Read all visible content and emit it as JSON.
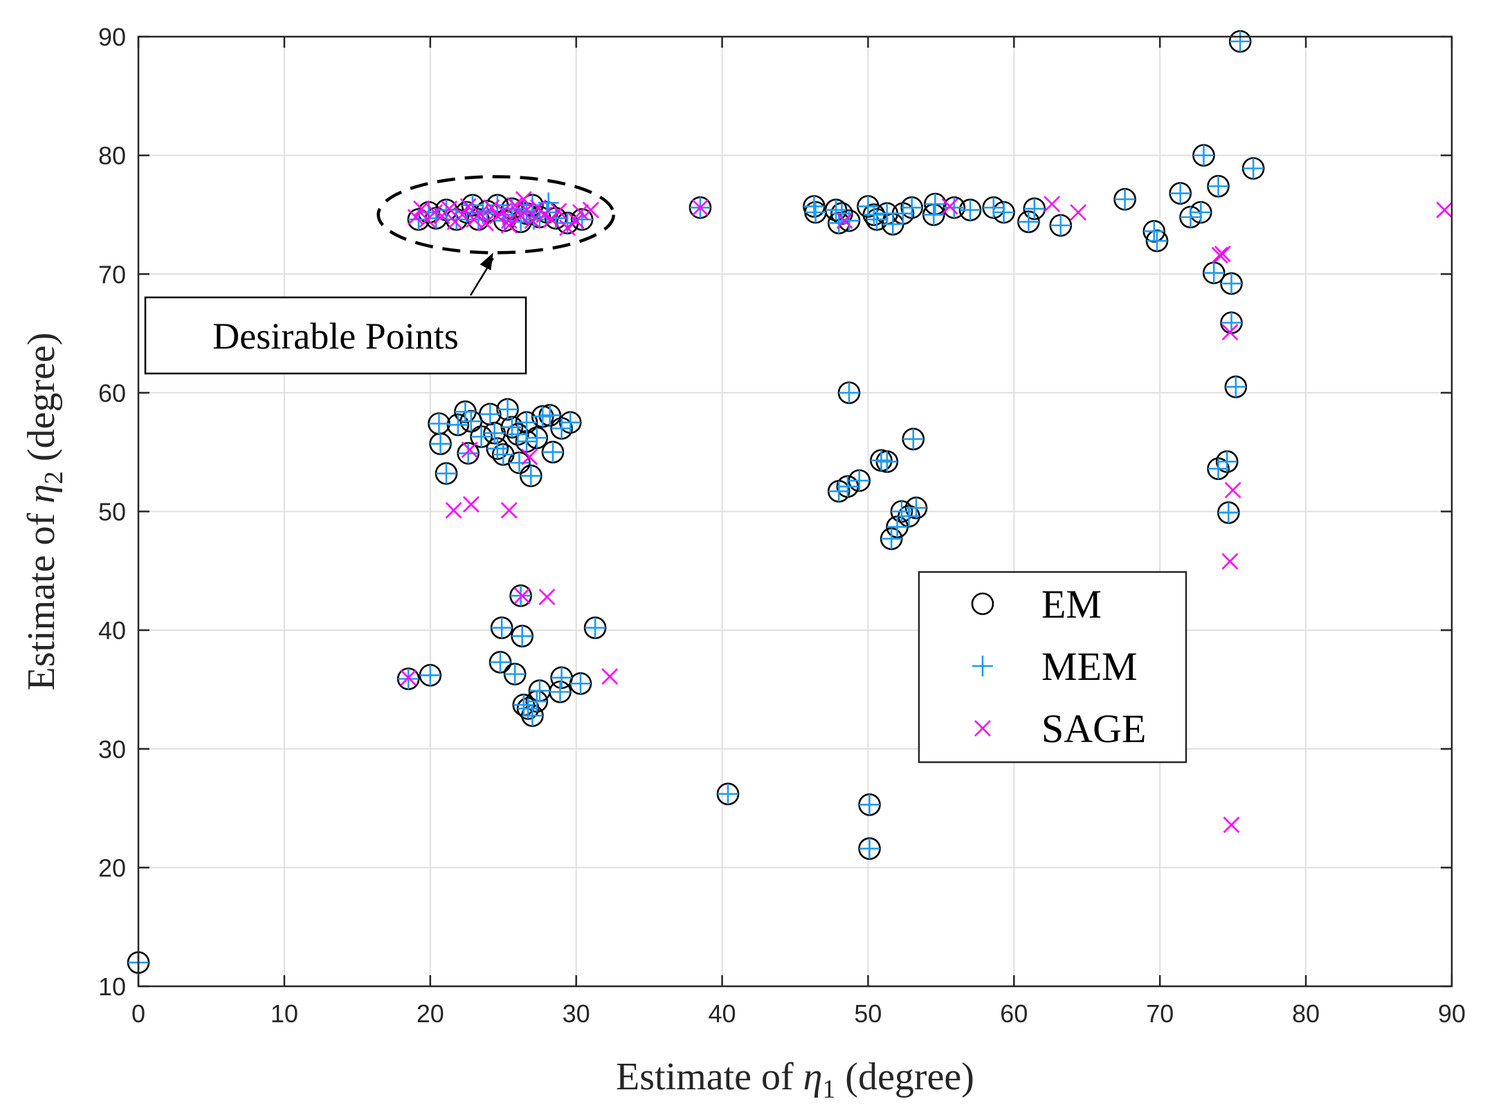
{
  "chart_data": {
    "type": "scatter",
    "title": "",
    "xlabel": "Estimate of η1 (degree)",
    "ylabel": "Estimate of η2 (degree)",
    "xlabel_parts": {
      "pre": "Estimate of ",
      "sym": "η",
      "sub": "1",
      "post": " (degree)"
    },
    "ylabel_parts": {
      "pre": "Estimate of ",
      "sym": "η",
      "sub": "2",
      "post": " (degree)"
    },
    "xlim": [
      0,
      90
    ],
    "ylim": [
      10,
      90
    ],
    "xticks": [
      0,
      10,
      20,
      30,
      40,
      50,
      60,
      70,
      80,
      90
    ],
    "yticks": [
      10,
      20,
      30,
      40,
      50,
      60,
      70,
      80,
      90
    ],
    "grid": true,
    "legend_position": "center-right",
    "annotation": {
      "text": "Desirable Points",
      "target": [
        24.5,
        75
      ]
    },
    "series": [
      {
        "name": "EM",
        "marker": "circle",
        "color": "#000000",
        "points": [
          [
            0,
            12
          ],
          [
            20,
            36.2
          ],
          [
            18.5,
            35.9
          ],
          [
            25.8,
            36.3
          ],
          [
            24.8,
            37.3
          ],
          [
            24.9,
            40.2
          ],
          [
            26.3,
            39.5
          ],
          [
            26.2,
            42.9
          ],
          [
            26.4,
            33.7
          ],
          [
            26.7,
            33.4
          ],
          [
            27,
            32.8
          ],
          [
            27.3,
            34
          ],
          [
            27.5,
            34.9
          ],
          [
            28.9,
            34.8
          ],
          [
            29.0,
            36.0
          ],
          [
            30.3,
            35.5
          ],
          [
            31.3,
            40.2
          ],
          [
            40.4,
            26.2
          ],
          [
            50.1,
            25.3
          ],
          [
            50.1,
            21.6
          ],
          [
            20.6,
            57.4
          ],
          [
            20.7,
            55.7
          ],
          [
            21.1,
            53.2
          ],
          [
            21.9,
            57.3
          ],
          [
            22.4,
            58.4
          ],
          [
            22.8,
            57.6
          ],
          [
            22.6,
            54.9
          ],
          [
            23.5,
            56.3
          ],
          [
            24.1,
            58.2
          ],
          [
            24.4,
            56.6
          ],
          [
            24.6,
            55.3
          ],
          [
            25.0,
            54.8
          ],
          [
            25.3,
            58.6
          ],
          [
            25.6,
            57.1
          ],
          [
            26.0,
            56.5
          ],
          [
            26.6,
            55.9
          ],
          [
            26.1,
            54.1
          ],
          [
            26.6,
            57.5
          ],
          [
            26.9,
            53.0
          ],
          [
            27.3,
            56.2
          ],
          [
            27.7,
            58.0
          ],
          [
            28.2,
            58.1
          ],
          [
            28.4,
            55.0
          ],
          [
            29.0,
            57.0
          ],
          [
            29.6,
            57.5
          ],
          [
            48.7,
            60.0
          ],
          [
            48.0,
            51.7
          ],
          [
            48.6,
            52.1
          ],
          [
            49.4,
            52.6
          ],
          [
            50.9,
            54.3
          ],
          [
            51.3,
            54.2
          ],
          [
            53.1,
            56.1
          ],
          [
            51.6,
            47.7
          ],
          [
            52.0,
            48.7
          ],
          [
            52.3,
            50.0
          ],
          [
            52.8,
            49.6
          ],
          [
            53.3,
            50.3
          ],
          [
            19.2,
            74.6
          ],
          [
            19.9,
            75.2
          ],
          [
            20.4,
            74.7
          ],
          [
            21.1,
            75.4
          ],
          [
            21.8,
            74.6
          ],
          [
            22.5,
            75.2
          ],
          [
            22.9,
            75.8
          ],
          [
            23.3,
            74.6
          ],
          [
            23.9,
            75.3
          ],
          [
            24.6,
            75.8
          ],
          [
            25.1,
            74.5
          ],
          [
            25.6,
            75.5
          ],
          [
            26.2,
            74.4
          ],
          [
            26.6,
            75.1
          ],
          [
            27.0,
            75.8
          ],
          [
            27.5,
            74.8
          ],
          [
            28.0,
            75.2
          ],
          [
            28.6,
            74.7
          ],
          [
            29.4,
            74.3
          ],
          [
            30.4,
            74.6
          ],
          [
            38.5,
            75.6
          ],
          [
            46.4,
            75.2
          ],
          [
            46.3,
            75.7
          ],
          [
            47.8,
            75.4
          ],
          [
            48.0,
            74.3
          ],
          [
            48.7,
            74.5
          ],
          [
            48.2,
            75.1
          ],
          [
            50.0,
            75.7
          ],
          [
            50.4,
            75.0
          ],
          [
            50.6,
            74.6
          ],
          [
            51.3,
            75.1
          ],
          [
            51.7,
            74.2
          ],
          [
            52.4,
            75.1
          ],
          [
            53.0,
            75.6
          ],
          [
            54.6,
            75.9
          ],
          [
            54.5,
            75.0
          ],
          [
            55.9,
            75.6
          ],
          [
            57.0,
            75.4
          ],
          [
            58.6,
            75.6
          ],
          [
            59.3,
            75.2
          ],
          [
            61.0,
            74.4
          ],
          [
            61.4,
            75.5
          ],
          [
            63.2,
            74.1
          ],
          [
            67.6,
            76.3
          ],
          [
            69.6,
            73.6
          ],
          [
            69.8,
            72.8
          ],
          [
            71.4,
            76.8
          ],
          [
            72.1,
            74.8
          ],
          [
            72.8,
            75.2
          ],
          [
            73.0,
            80.0
          ],
          [
            74.0,
            77.4
          ],
          [
            75.5,
            89.6
          ],
          [
            76.4,
            78.9
          ],
          [
            73.7,
            70.1
          ],
          [
            74.9,
            69.2
          ],
          [
            74.9,
            65.9
          ],
          [
            75.2,
            60.5
          ],
          [
            74.6,
            54.2
          ],
          [
            74.0,
            53.6
          ],
          [
            74.7,
            49.9
          ]
        ]
      },
      {
        "name": "MEM",
        "marker": "plus",
        "color": "#1e9bef",
        "points": [
          [
            0,
            12
          ],
          [
            20,
            36.2
          ],
          [
            18.5,
            35.9
          ],
          [
            25.8,
            36.3
          ],
          [
            24.8,
            37.3
          ],
          [
            24.9,
            40.2
          ],
          [
            26.3,
            39.5
          ],
          [
            26.2,
            42.9
          ],
          [
            26.4,
            33.7
          ],
          [
            26.7,
            33.4
          ],
          [
            27,
            32.8
          ],
          [
            27.3,
            34
          ],
          [
            27.5,
            34.9
          ],
          [
            28.9,
            34.8
          ],
          [
            29.0,
            36.0
          ],
          [
            30.3,
            35.5
          ],
          [
            31.3,
            40.2
          ],
          [
            40.4,
            26.2
          ],
          [
            50.1,
            25.3
          ],
          [
            50.1,
            21.6
          ],
          [
            20.6,
            57.4
          ],
          [
            20.7,
            55.7
          ],
          [
            21.1,
            53.2
          ],
          [
            21.9,
            57.3
          ],
          [
            22.4,
            58.4
          ],
          [
            22.8,
            57.6
          ],
          [
            22.6,
            54.9
          ],
          [
            23.5,
            56.3
          ],
          [
            24.1,
            58.2
          ],
          [
            24.4,
            56.6
          ],
          [
            24.6,
            55.3
          ],
          [
            25.0,
            54.8
          ],
          [
            25.3,
            58.6
          ],
          [
            25.6,
            57.1
          ],
          [
            26.0,
            56.5
          ],
          [
            26.6,
            55.9
          ],
          [
            26.1,
            54.1
          ],
          [
            26.6,
            57.5
          ],
          [
            26.9,
            53.0
          ],
          [
            27.3,
            56.2
          ],
          [
            27.7,
            58.0
          ],
          [
            28.2,
            58.1
          ],
          [
            28.4,
            55.0
          ],
          [
            29.0,
            57.0
          ],
          [
            29.6,
            57.5
          ],
          [
            48.7,
            60.0
          ],
          [
            48.0,
            51.7
          ],
          [
            48.6,
            52.1
          ],
          [
            49.4,
            52.6
          ],
          [
            50.9,
            54.3
          ],
          [
            51.3,
            54.2
          ],
          [
            53.1,
            56.1
          ],
          [
            51.6,
            47.7
          ],
          [
            52.0,
            48.7
          ],
          [
            52.3,
            50.0
          ],
          [
            52.8,
            49.6
          ],
          [
            53.3,
            50.3
          ],
          [
            19.2,
            74.6
          ],
          [
            19.9,
            75.2
          ],
          [
            20.4,
            74.7
          ],
          [
            21.1,
            75.4
          ],
          [
            21.8,
            74.6
          ],
          [
            22.5,
            75.2
          ],
          [
            22.9,
            75.8
          ],
          [
            23.3,
            74.6
          ],
          [
            23.9,
            75.3
          ],
          [
            24.6,
            75.8
          ],
          [
            25.1,
            74.5
          ],
          [
            25.6,
            75.5
          ],
          [
            26.2,
            74.4
          ],
          [
            26.6,
            75.1
          ],
          [
            27.0,
            75.8
          ],
          [
            27.5,
            74.8
          ],
          [
            28.0,
            75.2
          ],
          [
            28.6,
            74.7
          ],
          [
            29.4,
            74.3
          ],
          [
            30.4,
            74.6
          ],
          [
            38.5,
            75.6
          ],
          [
            46.4,
            75.2
          ],
          [
            46.3,
            75.7
          ],
          [
            47.8,
            75.4
          ],
          [
            48.0,
            74.3
          ],
          [
            48.7,
            74.5
          ],
          [
            48.2,
            75.1
          ],
          [
            50.0,
            75.7
          ],
          [
            50.4,
            75.0
          ],
          [
            50.6,
            74.6
          ],
          [
            51.3,
            75.1
          ],
          [
            51.7,
            74.2
          ],
          [
            52.4,
            75.1
          ],
          [
            53.0,
            75.6
          ],
          [
            54.6,
            75.9
          ],
          [
            54.5,
            75.0
          ],
          [
            55.9,
            75.6
          ],
          [
            57.0,
            75.4
          ],
          [
            58.6,
            75.6
          ],
          [
            59.3,
            75.2
          ],
          [
            61.0,
            74.4
          ],
          [
            61.4,
            75.5
          ],
          [
            63.2,
            74.1
          ],
          [
            67.6,
            76.3
          ],
          [
            69.6,
            73.6
          ],
          [
            69.8,
            72.8
          ],
          [
            71.4,
            76.8
          ],
          [
            72.1,
            74.8
          ],
          [
            72.8,
            75.2
          ],
          [
            73.0,
            80.0
          ],
          [
            74.0,
            77.4
          ],
          [
            75.5,
            89.6
          ],
          [
            76.4,
            78.9
          ],
          [
            73.7,
            70.1
          ],
          [
            74.9,
            69.2
          ],
          [
            74.9,
            65.9
          ],
          [
            75.2,
            60.5
          ],
          [
            74.6,
            54.2
          ],
          [
            74.0,
            53.6
          ],
          [
            74.7,
            49.9
          ],
          [
            28.1,
            76.0
          ],
          [
            26.4,
            75.3
          ],
          [
            25.0,
            75.0
          ],
          [
            23.6,
            75.1
          ],
          [
            27.1,
            74.6
          ]
        ]
      },
      {
        "name": "SAGE",
        "marker": "x",
        "color": "#ff00ff",
        "points": [
          [
            18.5,
            36.0
          ],
          [
            26.3,
            42.9
          ],
          [
            28.0,
            42.8
          ],
          [
            32.3,
            36.1
          ],
          [
            26.8,
            54.6
          ],
          [
            21.6,
            50.1
          ],
          [
            22.8,
            50.6
          ],
          [
            25.4,
            50.1
          ],
          [
            22.7,
            55.2
          ],
          [
            19.0,
            74.8
          ],
          [
            19.4,
            75.5
          ],
          [
            19.8,
            74.6
          ],
          [
            20.3,
            75.2
          ],
          [
            20.8,
            74.9
          ],
          [
            21.3,
            75.5
          ],
          [
            21.7,
            74.4
          ],
          [
            22.2,
            75.0
          ],
          [
            22.6,
            75.7
          ],
          [
            23.0,
            74.6
          ],
          [
            23.4,
            75.1
          ],
          [
            23.8,
            74.3
          ],
          [
            24.2,
            75.6
          ],
          [
            24.6,
            74.9
          ],
          [
            25.0,
            75.3
          ],
          [
            25.4,
            74.5
          ],
          [
            25.8,
            75.8
          ],
          [
            26.2,
            74.9
          ],
          [
            26.6,
            75.4
          ],
          [
            27.0,
            74.5
          ],
          [
            27.4,
            75.6
          ],
          [
            27.8,
            75.0
          ],
          [
            28.3,
            74.6
          ],
          [
            28.8,
            75.3
          ],
          [
            29.4,
            73.9
          ],
          [
            30.0,
            74.5
          ],
          [
            30.3,
            75.2
          ],
          [
            31.0,
            75.4
          ],
          [
            25.4,
            74.1
          ],
          [
            26.4,
            76.3
          ],
          [
            38.5,
            75.6
          ],
          [
            48.4,
            74.5
          ],
          [
            55.6,
            75.7
          ],
          [
            62.6,
            75.9
          ],
          [
            64.4,
            75.2
          ],
          [
            89.5,
            75.4
          ],
          [
            74.1,
            71.6
          ],
          [
            74.3,
            71.7
          ],
          [
            74.8,
            65.1
          ],
          [
            75.0,
            51.8
          ],
          [
            74.8,
            45.8
          ],
          [
            74.9,
            23.6
          ]
        ]
      }
    ]
  }
}
